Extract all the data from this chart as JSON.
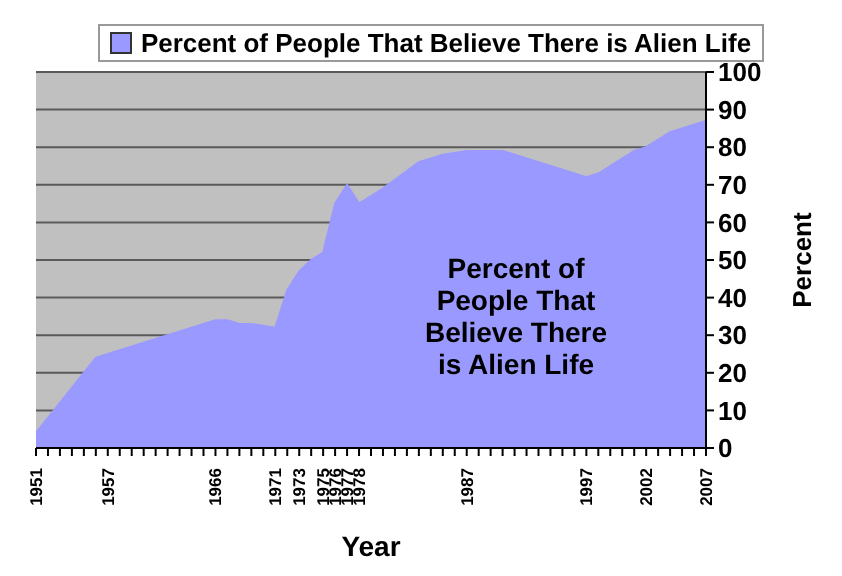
{
  "chart_data": {
    "type": "area",
    "xlabel": "Year",
    "ylabel": "Percent",
    "x": [
      1951,
      1953,
      1956,
      1957,
      1959,
      1962,
      1964,
      1966,
      1967,
      1968,
      1969,
      1971,
      1972,
      1973,
      1974,
      1975,
      1976,
      1977,
      1978,
      1979,
      1980,
      1983,
      1985,
      1987,
      1990,
      1997,
      1998,
      2001,
      2002,
      2004,
      2005,
      2007
    ],
    "series": [
      {
        "name": "Percent of People That Believe There is Alien Life",
        "color": "#9999ff",
        "values": [
          4,
          12,
          24,
          25,
          27,
          30,
          32,
          34,
          34,
          33,
          33,
          32,
          42,
          47,
          50,
          52,
          65,
          70,
          65,
          67,
          69,
          76,
          78,
          79,
          79,
          72,
          73,
          79,
          80,
          84,
          85,
          87
        ]
      }
    ],
    "xlim": [
      1951,
      2007
    ],
    "xticks": [
      1951,
      {
        "value": 1952,
        "label": null
      },
      {
        "value": 1953,
        "label": null
      },
      {
        "value": 1954,
        "label": null
      },
      {
        "value": 1955,
        "label": null
      },
      {
        "value": 1956,
        "label": null
      },
      1957,
      {
        "value": 1958,
        "label": null
      },
      {
        "value": 1959,
        "label": null
      },
      {
        "value": 1960,
        "label": null
      },
      {
        "value": 1961,
        "label": null
      },
      {
        "value": 1962,
        "label": null
      },
      {
        "value": 1963,
        "label": null
      },
      {
        "value": 1964,
        "label": null
      },
      {
        "value": 1965,
        "label": null
      },
      1966,
      {
        "value": 1967,
        "label": null
      },
      {
        "value": 1968,
        "label": null
      },
      {
        "value": 1969,
        "label": null
      },
      {
        "value": 1970,
        "label": null
      },
      1971,
      {
        "value": 1972,
        "label": null
      },
      1973,
      {
        "value": 1974,
        "label": null
      },
      1975,
      1976,
      1977,
      1978,
      {
        "value": 1979,
        "label": null
      },
      {
        "value": 1980,
        "label": null
      },
      {
        "value": 1981,
        "label": null
      },
      {
        "value": 1982,
        "label": null
      },
      {
        "value": 1983,
        "label": null
      },
      {
        "value": 1984,
        "label": null
      },
      {
        "value": 1985,
        "label": null
      },
      {
        "value": 1986,
        "label": null
      },
      1987,
      {
        "value": 1988,
        "label": null
      },
      {
        "value": 1989,
        "label": null
      },
      {
        "value": 1990,
        "label": null
      },
      {
        "value": 1991,
        "label": null
      },
      {
        "value": 1992,
        "label": null
      },
      {
        "value": 1993,
        "label": null
      },
      {
        "value": 1994,
        "label": null
      },
      {
        "value": 1995,
        "label": null
      },
      {
        "value": 1996,
        "label": null
      },
      1997,
      {
        "value": 1998,
        "label": null
      },
      {
        "value": 1999,
        "label": null
      },
      {
        "value": 2000,
        "label": null
      },
      {
        "value": 2001,
        "label": null
      },
      2002,
      {
        "value": 2003,
        "label": null
      },
      {
        "value": 2004,
        "label": null
      },
      {
        "value": 2005,
        "label": null
      },
      {
        "value": 2006,
        "label": null
      },
      2007
    ],
    "ylim": [
      0,
      100
    ],
    "yticks": [
      0,
      10,
      20,
      30,
      40,
      50,
      60,
      70,
      80,
      90,
      100
    ],
    "grid": "y",
    "legend": "top",
    "annotations": [
      "Percent of People That Believe There is Alien Life"
    ]
  }
}
